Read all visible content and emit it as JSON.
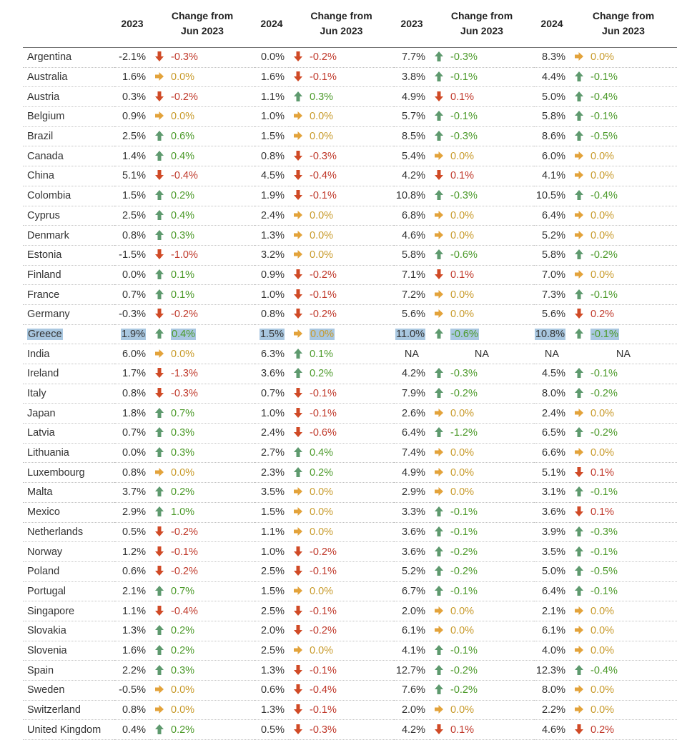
{
  "header": {
    "columns": [
      "2023",
      "Change from\nJun 2023",
      "2024",
      "Change from\nJun 2023",
      "2023",
      "Change from\nJun 2023",
      "2024",
      "Change from\nJun 2023"
    ]
  },
  "icons": {
    "up": {
      "name": "green-up-arrow-icon",
      "color": "#5e9a6e"
    },
    "down": {
      "name": "red-down-arrow-icon",
      "color": "#d04a26"
    },
    "flat": {
      "name": "orange-right-arrow-icon",
      "color": "#e3a33b"
    }
  },
  "colors": {
    "up_text": "#4c9a2a",
    "down_text": "#c0392b",
    "flat_text": "#c89a2a",
    "highlight": "#a9c7e0"
  },
  "highlighted_row": "Greece",
  "rows": [
    {
      "country": "Argentina",
      "cells": [
        [
          "-2.1%",
          "down",
          "-0.3%"
        ],
        [
          "0.0%",
          "down",
          "-0.2%"
        ],
        [
          "7.7%",
          "up",
          "-0.3%"
        ],
        [
          "8.3%",
          "flat",
          "0.0%"
        ]
      ]
    },
    {
      "country": "Australia",
      "cells": [
        [
          "1.6%",
          "flat",
          "0.0%"
        ],
        [
          "1.6%",
          "down",
          "-0.1%"
        ],
        [
          "3.8%",
          "up",
          "-0.1%"
        ],
        [
          "4.4%",
          "up",
          "-0.1%"
        ]
      ]
    },
    {
      "country": "Austria",
      "cells": [
        [
          "0.3%",
          "down",
          "-0.2%"
        ],
        [
          "1.1%",
          "up",
          "0.3%"
        ],
        [
          "4.9%",
          "down",
          "0.1%"
        ],
        [
          "5.0%",
          "up",
          "-0.4%"
        ]
      ]
    },
    {
      "country": "Belgium",
      "cells": [
        [
          "0.9%",
          "flat",
          "0.0%"
        ],
        [
          "1.0%",
          "flat",
          "0.0%"
        ],
        [
          "5.7%",
          "up",
          "-0.1%"
        ],
        [
          "5.8%",
          "up",
          "-0.1%"
        ]
      ]
    },
    {
      "country": "Brazil",
      "cells": [
        [
          "2.5%",
          "up",
          "0.6%"
        ],
        [
          "1.5%",
          "flat",
          "0.0%"
        ],
        [
          "8.5%",
          "up",
          "-0.3%"
        ],
        [
          "8.6%",
          "up",
          "-0.5%"
        ]
      ]
    },
    {
      "country": "Canada",
      "cells": [
        [
          "1.4%",
          "up",
          "0.4%"
        ],
        [
          "0.8%",
          "down",
          "-0.3%"
        ],
        [
          "5.4%",
          "flat",
          "0.0%"
        ],
        [
          "6.0%",
          "flat",
          "0.0%"
        ]
      ]
    },
    {
      "country": "China",
      "cells": [
        [
          "5.1%",
          "down",
          "-0.4%"
        ],
        [
          "4.5%",
          "down",
          "-0.4%"
        ],
        [
          "4.2%",
          "down",
          "0.1%"
        ],
        [
          "4.1%",
          "flat",
          "0.0%"
        ]
      ]
    },
    {
      "country": "Colombia",
      "cells": [
        [
          "1.5%",
          "up",
          "0.2%"
        ],
        [
          "1.9%",
          "down",
          "-0.1%"
        ],
        [
          "10.8%",
          "up",
          "-0.3%"
        ],
        [
          "10.5%",
          "up",
          "-0.4%"
        ]
      ]
    },
    {
      "country": "Cyprus",
      "cells": [
        [
          "2.5%",
          "up",
          "0.4%"
        ],
        [
          "2.4%",
          "flat",
          "0.0%"
        ],
        [
          "6.8%",
          "flat",
          "0.0%"
        ],
        [
          "6.4%",
          "flat",
          "0.0%"
        ]
      ]
    },
    {
      "country": "Denmark",
      "cells": [
        [
          "0.8%",
          "up",
          "0.3%"
        ],
        [
          "1.3%",
          "flat",
          "0.0%"
        ],
        [
          "4.6%",
          "flat",
          "0.0%"
        ],
        [
          "5.2%",
          "flat",
          "0.0%"
        ]
      ]
    },
    {
      "country": "Estonia",
      "cells": [
        [
          "-1.5%",
          "down",
          "-1.0%"
        ],
        [
          "3.2%",
          "flat",
          "0.0%"
        ],
        [
          "5.8%",
          "up",
          "-0.6%"
        ],
        [
          "5.8%",
          "up",
          "-0.2%"
        ]
      ]
    },
    {
      "country": "Finland",
      "cells": [
        [
          "0.0%",
          "up",
          "0.1%"
        ],
        [
          "0.9%",
          "down",
          "-0.2%"
        ],
        [
          "7.1%",
          "down",
          "0.1%"
        ],
        [
          "7.0%",
          "flat",
          "0.0%"
        ]
      ]
    },
    {
      "country": "France",
      "cells": [
        [
          "0.7%",
          "up",
          "0.1%"
        ],
        [
          "1.0%",
          "down",
          "-0.1%"
        ],
        [
          "7.2%",
          "flat",
          "0.0%"
        ],
        [
          "7.3%",
          "up",
          "-0.1%"
        ]
      ]
    },
    {
      "country": "Germany",
      "cells": [
        [
          "-0.3%",
          "down",
          "-0.2%"
        ],
        [
          "0.8%",
          "down",
          "-0.2%"
        ],
        [
          "5.6%",
          "flat",
          "0.0%"
        ],
        [
          "5.6%",
          "down",
          "0.2%"
        ]
      ]
    },
    {
      "country": "Greece",
      "cells": [
        [
          "1.9%",
          "up",
          "0.4%"
        ],
        [
          "1.5%",
          "flat",
          "0.0%"
        ],
        [
          "11.0%",
          "up",
          "-0.6%"
        ],
        [
          "10.8%",
          "up",
          "-0.1%"
        ]
      ]
    },
    {
      "country": "India",
      "cells": [
        [
          "6.0%",
          "flat",
          "0.0%"
        ],
        [
          "6.3%",
          "up",
          "0.1%"
        ],
        [
          "NA",
          "",
          "NA"
        ],
        [
          "NA",
          "",
          "NA"
        ]
      ]
    },
    {
      "country": "Ireland",
      "cells": [
        [
          "1.7%",
          "down",
          "-1.3%"
        ],
        [
          "3.6%",
          "up",
          "0.2%"
        ],
        [
          "4.2%",
          "up",
          "-0.3%"
        ],
        [
          "4.5%",
          "up",
          "-0.1%"
        ]
      ]
    },
    {
      "country": "Italy",
      "cells": [
        [
          "0.8%",
          "down",
          "-0.3%"
        ],
        [
          "0.7%",
          "down",
          "-0.1%"
        ],
        [
          "7.9%",
          "up",
          "-0.2%"
        ],
        [
          "8.0%",
          "up",
          "-0.2%"
        ]
      ]
    },
    {
      "country": "Japan",
      "cells": [
        [
          "1.8%",
          "up",
          "0.7%"
        ],
        [
          "1.0%",
          "down",
          "-0.1%"
        ],
        [
          "2.6%",
          "flat",
          "0.0%"
        ],
        [
          "2.4%",
          "flat",
          "0.0%"
        ]
      ]
    },
    {
      "country": "Latvia",
      "cells": [
        [
          "0.7%",
          "up",
          "0.3%"
        ],
        [
          "2.4%",
          "down",
          "-0.6%"
        ],
        [
          "6.4%",
          "up",
          "-1.2%"
        ],
        [
          "6.5%",
          "up",
          "-0.2%"
        ]
      ]
    },
    {
      "country": "Lithuania",
      "cells": [
        [
          "0.0%",
          "up",
          "0.3%"
        ],
        [
          "2.7%",
          "up",
          "0.4%"
        ],
        [
          "7.4%",
          "flat",
          "0.0%"
        ],
        [
          "6.6%",
          "flat",
          "0.0%"
        ]
      ]
    },
    {
      "country": "Luxembourg",
      "cells": [
        [
          "0.8%",
          "flat",
          "0.0%"
        ],
        [
          "2.3%",
          "up",
          "0.2%"
        ],
        [
          "4.9%",
          "flat",
          "0.0%"
        ],
        [
          "5.1%",
          "down",
          "0.1%"
        ]
      ]
    },
    {
      "country": "Malta",
      "cells": [
        [
          "3.7%",
          "up",
          "0.2%"
        ],
        [
          "3.5%",
          "flat",
          "0.0%"
        ],
        [
          "2.9%",
          "flat",
          "0.0%"
        ],
        [
          "3.1%",
          "up",
          "-0.1%"
        ]
      ]
    },
    {
      "country": "Mexico",
      "cells": [
        [
          "2.9%",
          "up",
          "1.0%"
        ],
        [
          "1.5%",
          "flat",
          "0.0%"
        ],
        [
          "3.3%",
          "up",
          "-0.1%"
        ],
        [
          "3.6%",
          "down",
          "0.1%"
        ]
      ]
    },
    {
      "country": "Netherlands",
      "cells": [
        [
          "0.5%",
          "down",
          "-0.2%"
        ],
        [
          "1.1%",
          "flat",
          "0.0%"
        ],
        [
          "3.6%",
          "up",
          "-0.1%"
        ],
        [
          "3.9%",
          "up",
          "-0.3%"
        ]
      ]
    },
    {
      "country": "Norway",
      "cells": [
        [
          "1.2%",
          "down",
          "-0.1%"
        ],
        [
          "1.0%",
          "down",
          "-0.2%"
        ],
        [
          "3.6%",
          "up",
          "-0.2%"
        ],
        [
          "3.5%",
          "up",
          "-0.1%"
        ]
      ]
    },
    {
      "country": "Poland",
      "cells": [
        [
          "0.6%",
          "down",
          "-0.2%"
        ],
        [
          "2.5%",
          "down",
          "-0.1%"
        ],
        [
          "5.2%",
          "up",
          "-0.2%"
        ],
        [
          "5.0%",
          "up",
          "-0.5%"
        ]
      ]
    },
    {
      "country": "Portugal",
      "cells": [
        [
          "2.1%",
          "up",
          "0.7%"
        ],
        [
          "1.5%",
          "flat",
          "0.0%"
        ],
        [
          "6.7%",
          "up",
          "-0.1%"
        ],
        [
          "6.4%",
          "up",
          "-0.1%"
        ]
      ]
    },
    {
      "country": "Singapore",
      "cells": [
        [
          "1.1%",
          "down",
          "-0.4%"
        ],
        [
          "2.5%",
          "down",
          "-0.1%"
        ],
        [
          "2.0%",
          "flat",
          "0.0%"
        ],
        [
          "2.1%",
          "flat",
          "0.0%"
        ]
      ]
    },
    {
      "country": "Slovakia",
      "cells": [
        [
          "1.3%",
          "up",
          "0.2%"
        ],
        [
          "2.0%",
          "down",
          "-0.2%"
        ],
        [
          "6.1%",
          "flat",
          "0.0%"
        ],
        [
          "6.1%",
          "flat",
          "0.0%"
        ]
      ]
    },
    {
      "country": "Slovenia",
      "cells": [
        [
          "1.6%",
          "up",
          "0.2%"
        ],
        [
          "2.5%",
          "flat",
          "0.0%"
        ],
        [
          "4.1%",
          "up",
          "-0.1%"
        ],
        [
          "4.0%",
          "flat",
          "0.0%"
        ]
      ]
    },
    {
      "country": "Spain",
      "cells": [
        [
          "2.2%",
          "up",
          "0.3%"
        ],
        [
          "1.3%",
          "down",
          "-0.1%"
        ],
        [
          "12.7%",
          "up",
          "-0.2%"
        ],
        [
          "12.3%",
          "up",
          "-0.4%"
        ]
      ]
    },
    {
      "country": "Sweden",
      "cells": [
        [
          "-0.5%",
          "flat",
          "0.0%"
        ],
        [
          "0.6%",
          "down",
          "-0.4%"
        ],
        [
          "7.6%",
          "up",
          "-0.2%"
        ],
        [
          "8.0%",
          "flat",
          "0.0%"
        ]
      ]
    },
    {
      "country": "Switzerland",
      "cells": [
        [
          "0.8%",
          "flat",
          "0.0%"
        ],
        [
          "1.3%",
          "down",
          "-0.1%"
        ],
        [
          "2.0%",
          "flat",
          "0.0%"
        ],
        [
          "2.2%",
          "flat",
          "0.0%"
        ]
      ]
    },
    {
      "country": "United Kingdom",
      "cells": [
        [
          "0.4%",
          "up",
          "0.2%"
        ],
        [
          "0.5%",
          "down",
          "-0.3%"
        ],
        [
          "4.2%",
          "down",
          "0.1%"
        ],
        [
          "4.6%",
          "down",
          "0.2%"
        ]
      ]
    }
  ]
}
